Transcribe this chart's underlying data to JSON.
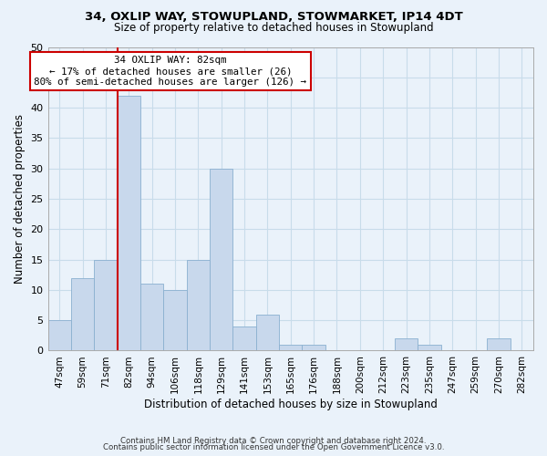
{
  "title1": "34, OXLIP WAY, STOWUPLAND, STOWMARKET, IP14 4DT",
  "title2": "Size of property relative to detached houses in Stowupland",
  "xlabel": "Distribution of detached houses by size in Stowupland",
  "ylabel": "Number of detached properties",
  "bin_labels": [
    "47sqm",
    "59sqm",
    "71sqm",
    "82sqm",
    "94sqm",
    "106sqm",
    "118sqm",
    "129sqm",
    "141sqm",
    "153sqm",
    "165sqm",
    "176sqm",
    "188sqm",
    "200sqm",
    "212sqm",
    "223sqm",
    "235sqm",
    "247sqm",
    "259sqm",
    "270sqm",
    "282sqm"
  ],
  "bar_heights": [
    5,
    12,
    15,
    42,
    11,
    10,
    15,
    30,
    4,
    6,
    1,
    1,
    0,
    0,
    0,
    2,
    1,
    0,
    0,
    2,
    0
  ],
  "bar_color": "#c8d8ec",
  "bar_edge_color": "#8ab0d0",
  "grid_color": "#c8dcea",
  "vline_x_index": 3,
  "vline_color": "#cc0000",
  "annotation_line1": "34 OXLIP WAY: 82sqm",
  "annotation_line2": "← 17% of detached houses are smaller (26)",
  "annotation_line3": "80% of semi-detached houses are larger (126) →",
  "annotation_box_color": "#ffffff",
  "annotation_box_edge": "#cc0000",
  "ylim": [
    0,
    50
  ],
  "yticks": [
    0,
    5,
    10,
    15,
    20,
    25,
    30,
    35,
    40,
    45,
    50
  ],
  "footer1": "Contains HM Land Registry data © Crown copyright and database right 2024.",
  "footer2": "Contains public sector information licensed under the Open Government Licence v3.0.",
  "bg_color": "#eaf2fa"
}
